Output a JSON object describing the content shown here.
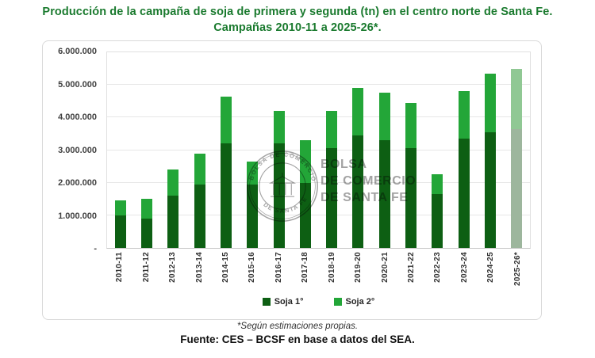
{
  "title": {
    "line1": "Producción de la campaña de soja de primera y segunda (tn) en el centro norte de Santa Fe.",
    "line2": "Campañas 2010-11 a 2025-26*."
  },
  "watermark": {
    "seal_top": "BOLSA DE COMERCIO",
    "seal_bottom": "DE SANTA FE",
    "lines": [
      "BOLSA",
      "DE COMERCIO",
      "DE SANTA FE"
    ]
  },
  "footer": {
    "footnote": "*Según estimaciones propias.",
    "source": "Fuente: CES – BCSF en base a datos del SEA."
  },
  "colors": {
    "title_green": "#1A7A2E",
    "soja1": "#0D5F13",
    "soja2": "#23A638",
    "soja1_estimated": "#9DB69D",
    "soja2_estimated": "#90C894",
    "watermark_gray": "#8C8C8C",
    "gridline": "#E7E7E7"
  },
  "chart_data": {
    "type": "bar",
    "stacked": true,
    "title": "Producción de la campaña de soja de primera y segunda (tn) en el centro norte de Santa Fe. Campañas 2010-11 a 2025-26*.",
    "categories": [
      "2010-11",
      "2011-12",
      "2012-13",
      "2013-14",
      "2014-15",
      "2015-16",
      "2016-17",
      "2017-18",
      "2018-19",
      "2019-20",
      "2020-21",
      "2021-22",
      "2022-23",
      "2023-24",
      "2024-25",
      "2025-26*"
    ],
    "series": [
      {
        "name": "Soja 1°",
        "color": "#0D5F13",
        "values": [
          1000000,
          900000,
          1600000,
          1950000,
          3200000,
          1950000,
          3200000,
          2000000,
          3050000,
          3450000,
          3300000,
          3050000,
          1650000,
          3350000,
          3550000,
          3650000
        ]
      },
      {
        "name": "Soja 2°",
        "color": "#23A638",
        "values": [
          450000,
          600000,
          800000,
          950000,
          1450000,
          700000,
          1000000,
          1300000,
          1150000,
          1450000,
          1450000,
          1400000,
          600000,
          1450000,
          1800000,
          1850000
        ]
      }
    ],
    "totals": [
      1450000,
      1500000,
      2400000,
      2900000,
      4650000,
      2650000,
      4200000,
      3300000,
      4200000,
      4900000,
      4750000,
      4450000,
      2250000,
      4800000,
      5350000,
      5500000
    ],
    "estimated_category": "2025-26*",
    "estimated_series_colors": {
      "Soja 1°": "#9DB69D",
      "Soja 2°": "#90C894"
    },
    "y_ticks": [
      "6.000.000",
      "5.000.000",
      "4.000.000",
      "3.000.000",
      "2.000.000",
      "1.000.000",
      "-"
    ],
    "ylim": [
      0,
      6000000
    ],
    "xlabel": "",
    "ylabel": "",
    "grid": true,
    "legend_position": "bottom"
  }
}
